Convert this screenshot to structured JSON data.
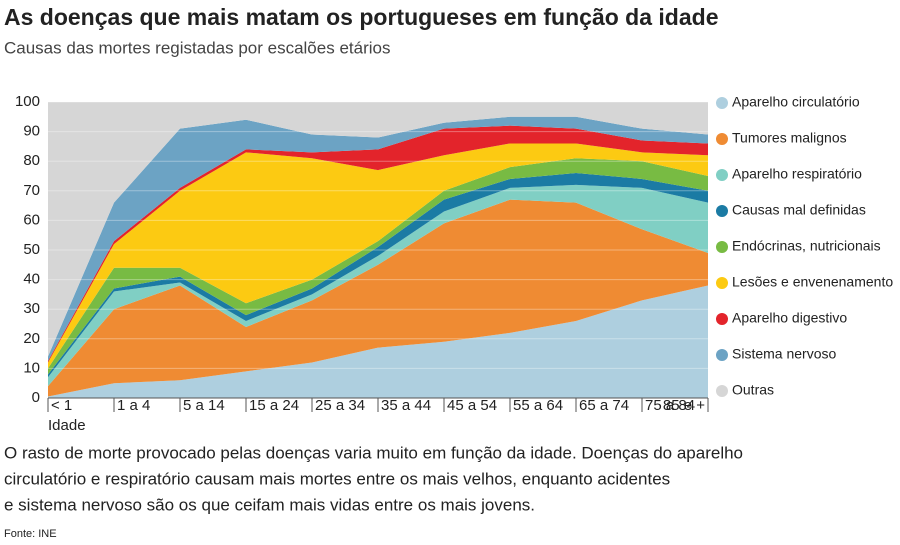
{
  "chart_data": {
    "type": "stacked_area",
    "title": "As doenças que mais matam os portugueses em função da idade",
    "subtitle": "Causas das mortes registadas por escalões etários",
    "x_label": "Idade",
    "description": [
      "O rasto de morte provocado pelas doenças varia muito em função da idade. Doenças do aparelho",
      "circulatório e respiratório causam mais mortes entre os mais velhos, enquanto acidentes",
      "e sistema nervoso são os que ceifam mais vidas entre os mais jovens."
    ],
    "source": "Fonte: INE",
    "categories": [
      "< 1",
      "1  a 4",
      "5 a 14",
      "15 a 24",
      "25 a 34",
      "35 a 44",
      "45 a 54",
      "55 a 64",
      "65 a 74",
      "75 a 84",
      "85 e +"
    ],
    "ylim": [
      0,
      100
    ],
    "yticks": [
      0,
      10,
      20,
      30,
      40,
      50,
      60,
      70,
      80,
      90,
      100
    ],
    "grid": true,
    "legend": "right",
    "series": [
      {
        "name": "Aparelho circulatório",
        "color": "#aecfdf",
        "values": [
          0.5,
          5,
          6,
          9,
          12,
          17,
          19,
          22,
          26,
          33,
          38
        ]
      },
      {
        "name": "Tumores malignos",
        "color": "#ef8b33",
        "values": [
          3.5,
          25,
          32,
          15,
          21,
          28,
          40,
          45,
          40,
          24,
          11
        ]
      },
      {
        "name": "Aparelho respiratório",
        "color": "#80cfc4",
        "values": [
          3,
          6,
          1,
          2,
          2,
          3,
          4,
          4,
          6,
          14,
          17
        ]
      },
      {
        "name": "Causas mal definidas",
        "color": "#1b7ba4",
        "values": [
          1,
          1,
          2,
          2,
          2,
          3,
          4,
          3,
          4,
          3,
          4
        ]
      },
      {
        "name": "Endócrinas, nutricionais",
        "color": "#78bb43",
        "values": [
          2,
          7,
          3,
          4,
          3,
          2,
          3,
          4,
          5,
          6,
          5
        ]
      },
      {
        "name": "Lesões e envenenamento",
        "color": "#fcca12",
        "values": [
          2,
          8,
          26,
          51,
          41,
          24,
          12,
          8,
          5,
          3,
          7
        ]
      },
      {
        "name": "Aparelho digestivo",
        "color": "#e3242b",
        "values": [
          0.5,
          1,
          1,
          1,
          2,
          7,
          9,
          6,
          5,
          4,
          4
        ]
      },
      {
        "name": "Sistema nervoso",
        "color": "#6ca3c4",
        "values": [
          1.5,
          13,
          20,
          10,
          6,
          4,
          2,
          3,
          4,
          4,
          3
        ]
      },
      {
        "name": "Outras",
        "color": "#d6d6d6",
        "values": [
          86,
          34,
          9,
          6,
          11,
          12,
          7,
          5,
          5,
          9,
          11
        ]
      }
    ]
  }
}
